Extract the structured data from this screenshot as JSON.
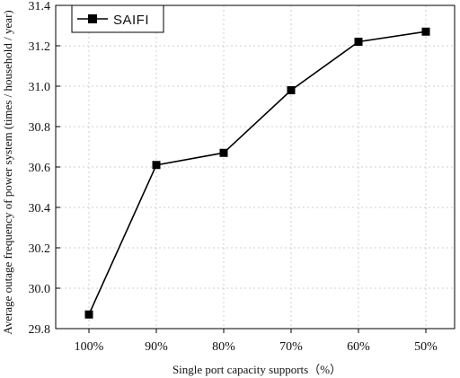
{
  "chart_data": {
    "type": "line",
    "categories": [
      "100%",
      "90%",
      "80%",
      "70%",
      "60%",
      "50%"
    ],
    "series": [
      {
        "name": "SAIFI",
        "values": [
          29.87,
          30.61,
          30.67,
          30.98,
          31.22,
          31.27
        ],
        "color": "#000000",
        "marker": "square"
      }
    ],
    "xlabel": "Single port capacity supports（%）",
    "ylabel": "Average outage frequency of power system (times / household / year)",
    "ylim": [
      29.8,
      31.4
    ],
    "yticks": [
      "29.8",
      "30.0",
      "30.2",
      "30.4",
      "30.6",
      "30.8",
      "31.0",
      "31.2",
      "31.4"
    ],
    "grid": true,
    "legend": "top-left"
  }
}
